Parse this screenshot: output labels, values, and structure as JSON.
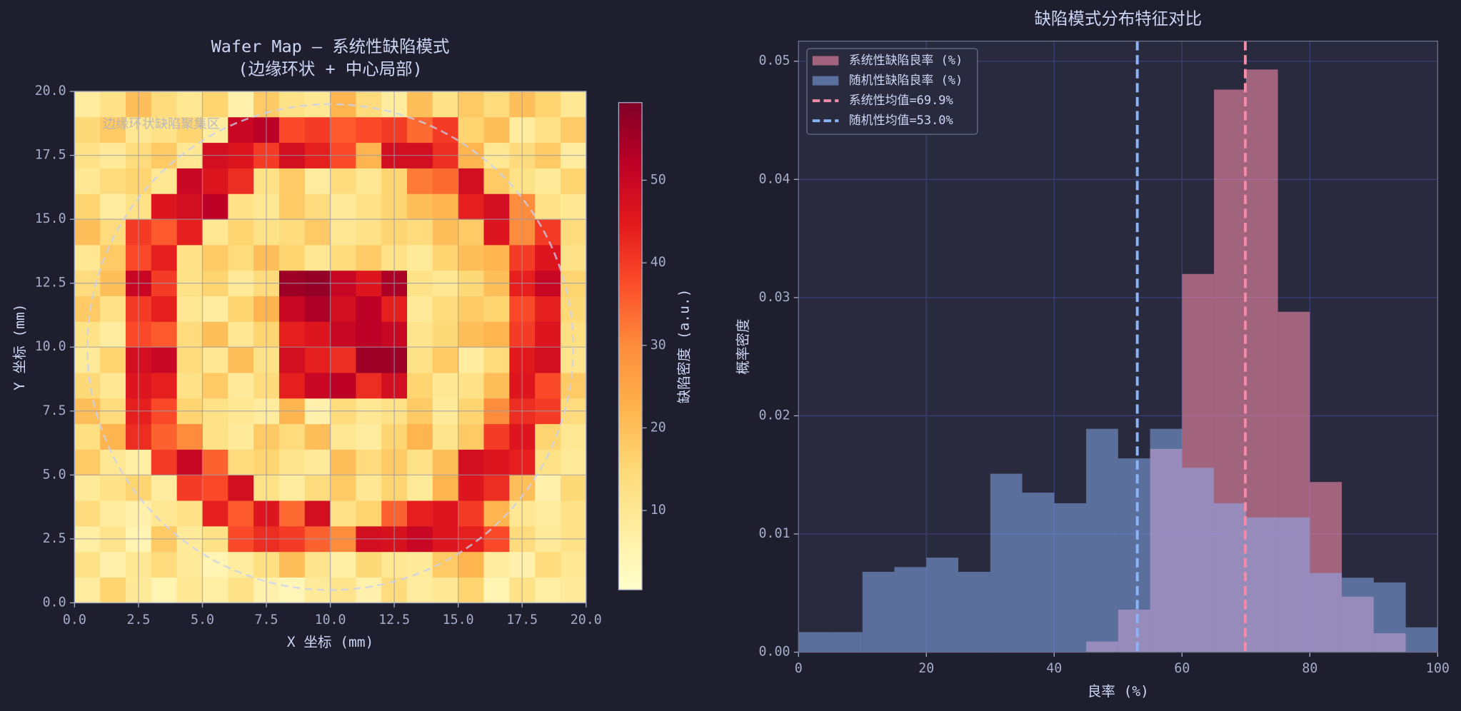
{
  "chart_data": [
    {
      "type": "heatmap",
      "title": [
        "Wafer Map — 系统性缺陷模式",
        "(边缘环状 + 中心局部)"
      ],
      "xlabel": "X 坐标 (mm)",
      "ylabel": "Y 坐标 (mm)",
      "xlim": [
        0,
        20
      ],
      "ylim": [
        0,
        20
      ],
      "xticks": [
        {
          "value": 0,
          "label": "0.0"
        },
        2.5,
        {
          "value": 5,
          "label": "5.0"
        },
        7.5,
        {
          "value": 10,
          "label": "10.0"
        },
        12.5,
        {
          "value": 15,
          "label": "15.0"
        },
        17.5,
        {
          "value": 20,
          "label": "20.0"
        }
      ],
      "yticks": [
        {
          "value": 0,
          "label": "0.0"
        },
        2.5,
        {
          "value": 5,
          "label": "5.0"
        },
        7.5,
        {
          "value": 10,
          "label": "10.0"
        },
        12.5,
        {
          "value": 15,
          "label": "15.0"
        },
        17.5,
        {
          "value": 20,
          "label": "20.0"
        }
      ],
      "grid": true,
      "z": [
        [
          8,
          16,
          9,
          5,
          10,
          7,
          12,
          6,
          4,
          9,
          11,
          6,
          14,
          8,
          10,
          16,
          5,
          12,
          7,
          9
        ],
        [
          12,
          6,
          10,
          14,
          9,
          5,
          8,
          13,
          20,
          11,
          7,
          15,
          10,
          9,
          18,
          22,
          8,
          6,
          14,
          10
        ],
        [
          7,
          11,
          5,
          18,
          9,
          12,
          38,
          42,
          40,
          35,
          30,
          48,
          47,
          50,
          46,
          44,
          38,
          14,
          9,
          12
        ],
        [
          14,
          8,
          6,
          10,
          12,
          44,
          36,
          46,
          34,
          48,
          12,
          16,
          35,
          44,
          46,
          40,
          22,
          10,
          8,
          12
        ],
        [
          9,
          12,
          16,
          8,
          40,
          38,
          48,
          12,
          8,
          14,
          18,
          10,
          16,
          9,
          22,
          46,
          42,
          20,
          6,
          15
        ],
        [
          18,
          10,
          7,
          40,
          50,
          35,
          14,
          16,
          11,
          9,
          20,
          14,
          18,
          12,
          20,
          48,
          46,
          44,
          12,
          9
        ],
        [
          13,
          22,
          42,
          35,
          30,
          12,
          9,
          18,
          14,
          20,
          10,
          8,
          16,
          22,
          11,
          18,
          40,
          46,
          16,
          10
        ],
        [
          20,
          14,
          44,
          38,
          16,
          12,
          10,
          8,
          22,
          6,
          14,
          10,
          12,
          18,
          9,
          16,
          30,
          42,
          40,
          14
        ],
        [
          15,
          10,
          46,
          44,
          12,
          18,
          9,
          14,
          44,
          50,
          52,
          42,
          48,
          16,
          10,
          12,
          20,
          46,
          38,
          18
        ],
        [
          9,
          16,
          48,
          50,
          14,
          10,
          20,
          12,
          48,
          44,
          42,
          56,
          56,
          12,
          18,
          8,
          14,
          45,
          48,
          11
        ],
        [
          12,
          8,
          38,
          36,
          14,
          20,
          10,
          16,
          44,
          46,
          50,
          52,
          50,
          11,
          15,
          20,
          22,
          40,
          46,
          13
        ],
        [
          18,
          12,
          40,
          44,
          10,
          8,
          16,
          22,
          50,
          54,
          48,
          52,
          44,
          9,
          14,
          18,
          16,
          38,
          44,
          15
        ],
        [
          14,
          20,
          50,
          40,
          12,
          16,
          9,
          14,
          56,
          57,
          50,
          46,
          54,
          12,
          10,
          15,
          20,
          44,
          50,
          16
        ],
        [
          10,
          18,
          38,
          44,
          12,
          18,
          14,
          20,
          16,
          10,
          14,
          18,
          12,
          9,
          16,
          20,
          22,
          40,
          46,
          12
        ],
        [
          20,
          14,
          40,
          36,
          44,
          10,
          16,
          12,
          14,
          18,
          10,
          12,
          16,
          14,
          20,
          18,
          46,
          30,
          40,
          14
        ],
        [
          16,
          8,
          12,
          46,
          48,
          52,
          12,
          10,
          18,
          14,
          9,
          12,
          16,
          20,
          22,
          44,
          48,
          30,
          12,
          10
        ],
        [
          10,
          14,
          16,
          10,
          50,
          46,
          42,
          12,
          18,
          8,
          14,
          10,
          16,
          32,
          34,
          48,
          18,
          12,
          9,
          16
        ],
        [
          12,
          9,
          14,
          18,
          10,
          48,
          46,
          40,
          48,
          44,
          38,
          22,
          48,
          48,
          42,
          22,
          10,
          14,
          18,
          8
        ],
        [
          15,
          18,
          10,
          12,
          16,
          8,
          50,
          52,
          38,
          40,
          36,
          38,
          40,
          34,
          40,
          16,
          20,
          8,
          12,
          18
        ],
        [
          8,
          12,
          20,
          14,
          10,
          16,
          6,
          18,
          12,
          10,
          22,
          14,
          8,
          20,
          12,
          18,
          14,
          20,
          16,
          10
        ]
      ],
      "colormap": "YlOrRd",
      "zlim": [
        0.4,
        59.4
      ],
      "zticks": [
        10,
        20,
        30,
        40,
        50
      ],
      "zlabel": "缺陷密度 (a.u.)",
      "annotation": {
        "text": "边缘环状缺陷聚集区",
        "x": 1.1,
        "y": 18.7
      },
      "wafer_edge": {
        "center": [
          10,
          10
        ],
        "radius": 9.5,
        "color": "#c8d0f0"
      }
    },
    {
      "type": "histogram",
      "title": "缺陷模式分布特征对比",
      "xlabel": "良率 (%)",
      "ylabel": "概率密度",
      "bins": [
        0,
        5,
        10,
        15,
        20,
        25,
        30,
        35,
        40,
        45,
        50,
        55,
        60,
        65,
        70,
        75,
        80,
        85,
        90,
        95,
        100
      ],
      "series": [
        {
          "name": "系统性缺陷良率 (%)",
          "color": "#f38ba8",
          "values": [
            0,
            0,
            0,
            0,
            0,
            0,
            0,
            0,
            0,
            0.0009,
            0.0036,
            0.0172,
            0.032,
            0.0476,
            0.0493,
            0.0288,
            0.0144,
            0.0047,
            0.0016,
            0
          ]
        },
        {
          "name": "随机性缺陷良率 (%)",
          "color": "#89b4fa",
          "values": [
            0.0017,
            0.0017,
            0.0068,
            0.0072,
            0.008,
            0.0068,
            0.0151,
            0.0135,
            0.0126,
            0.0189,
            0.0164,
            0.0189,
            0.0156,
            0.0126,
            0.0114,
            0.0114,
            0.0067,
            0.0063,
            0.0059,
            0.0021
          ]
        }
      ],
      "vlines": [
        {
          "name": "系统性均值=69.9%",
          "x": 69.9,
          "color": "#f38ba8"
        },
        {
          "name": "随机性均值=53.0%",
          "x": 53.0,
          "color": "#89b4fa"
        }
      ],
      "xlim": [
        0,
        100
      ],
      "ylim": [
        0,
        0.0517
      ],
      "xticks": [
        0,
        20,
        40,
        60,
        80,
        100
      ],
      "yticks": [
        {
          "value": 0,
          "label": "0.00"
        },
        0.01,
        0.02,
        0.03,
        0.04,
        0.05
      ],
      "grid": true,
      "legend": "upper left"
    }
  ]
}
